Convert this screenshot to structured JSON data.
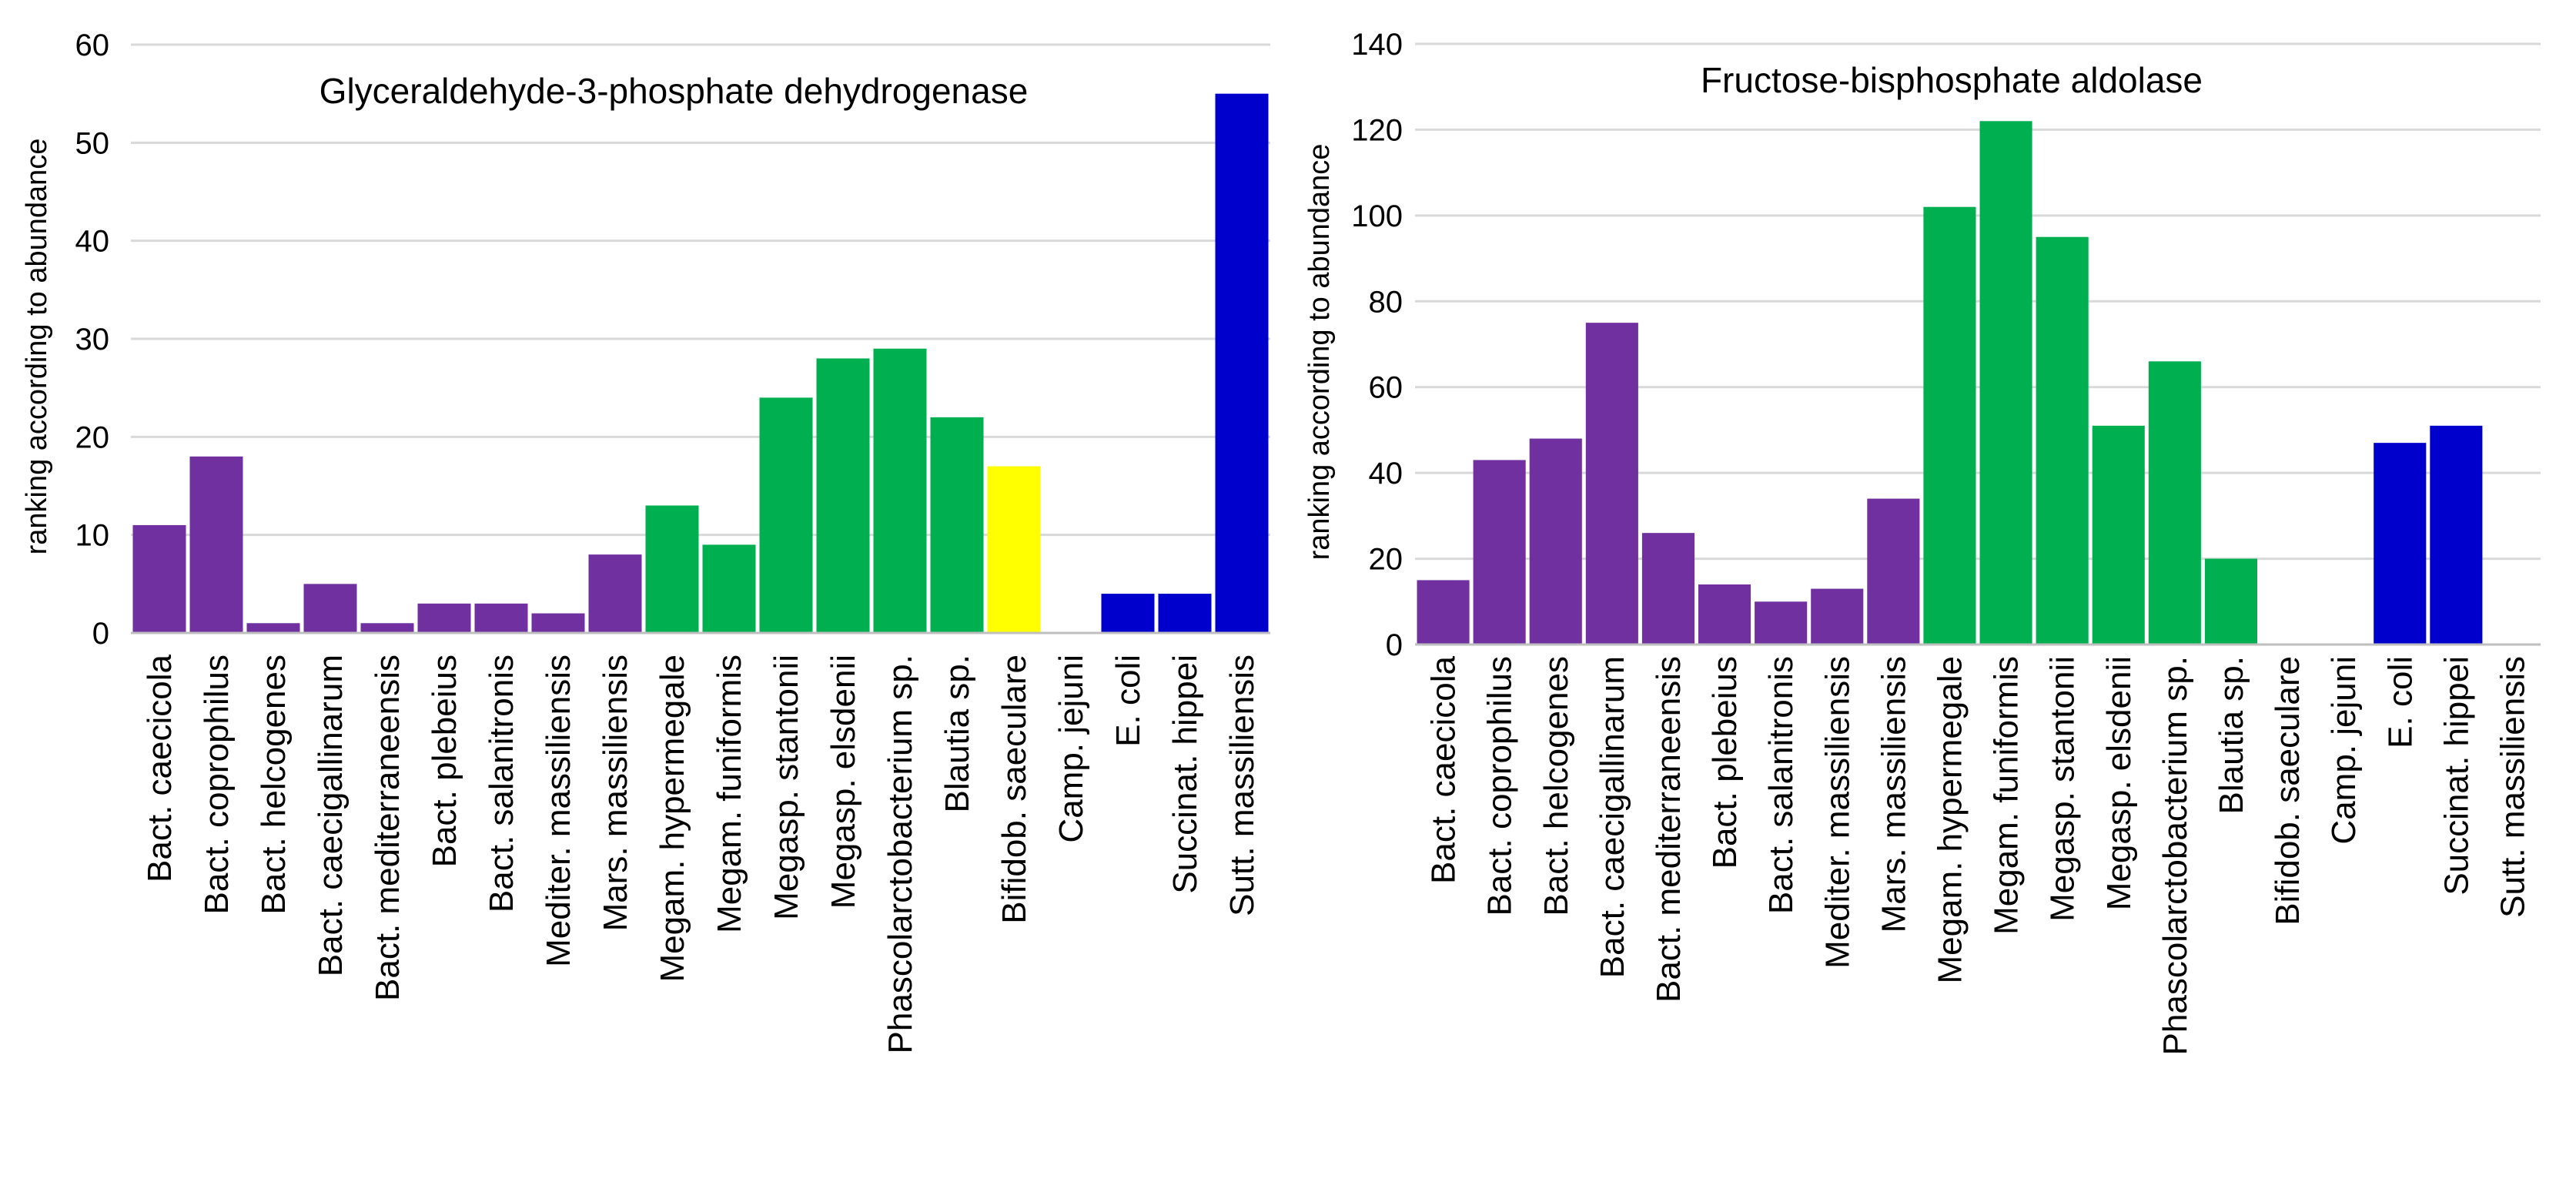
{
  "chart_data": [
    {
      "type": "bar",
      "title": "Glyceraldehyde-3-phosphate dehydrogenase",
      "xlabel": "",
      "ylabel": "ranking according to abundance",
      "ylim": [
        0,
        60
      ],
      "yticks": [
        0,
        10,
        20,
        30,
        40,
        50,
        60
      ],
      "grid": true,
      "categories": [
        "Bact. caecicola",
        "Bact. coprophilus",
        "Bact. helcogenes",
        "Bact. caecigallinarum",
        "Bact. mediterraneensis",
        "Bact. plebeius",
        "Bact. salanitronis",
        "Mediter. massiliensis",
        "Mars. massiliensis",
        "Megam. hypermegale",
        "Megam. funiformis",
        "Megasp. stantonii",
        "Megasp. elsdenii",
        "Phascolarctobacterium sp.",
        "Blautia sp.",
        "Bifidob. saeculare",
        "Camp. jejuni",
        "E. coli",
        "Succinat. hippei",
        "Sutt. massiliensis"
      ],
      "values": [
        11,
        18,
        1,
        5,
        1,
        3,
        3,
        2,
        8,
        13,
        9,
        24,
        28,
        29,
        22,
        17,
        0,
        4,
        4,
        55
      ],
      "colors": [
        "#7030a0",
        "#7030a0",
        "#7030a0",
        "#7030a0",
        "#7030a0",
        "#7030a0",
        "#7030a0",
        "#7030a0",
        "#7030a0",
        "#00b050",
        "#00b050",
        "#00b050",
        "#00b050",
        "#00b050",
        "#00b050",
        "#ffff00",
        "#ffff00",
        "#0000cc",
        "#0000cc",
        "#0000cc"
      ]
    },
    {
      "type": "bar",
      "title": "Fructose-bisphosphate aldolase",
      "xlabel": "",
      "ylabel": "ranking according to abundance",
      "ylim": [
        0,
        140
      ],
      "yticks": [
        0,
        20,
        40,
        60,
        80,
        100,
        120,
        140
      ],
      "grid": true,
      "categories": [
        "Bact. caecicola",
        "Bact. coprophilus",
        "Bact. helcogenes",
        "Bact. caecigallinarum",
        "Bact. mediterraneensis",
        "Bact. plebeius",
        "Bact. salanitronis",
        "Mediter. massiliensis",
        "Mars. massiliensis",
        "Megam. hypermegale",
        "Megam. funiformis",
        "Megasp. stantonii",
        "Megasp. elsdenii",
        "Phascolarctobacterium sp.",
        "Blautia sp.",
        "Bifidob. saeculare",
        "Camp. jejuni",
        "E. coli",
        "Succinat. hippei",
        "Sutt. massiliensis"
      ],
      "values": [
        15,
        43,
        48,
        75,
        26,
        14,
        10,
        13,
        34,
        102,
        122,
        95,
        51,
        66,
        20,
        0,
        0,
        47,
        51,
        0
      ],
      "colors": [
        "#7030a0",
        "#7030a0",
        "#7030a0",
        "#7030a0",
        "#7030a0",
        "#7030a0",
        "#7030a0",
        "#7030a0",
        "#7030a0",
        "#00b050",
        "#00b050",
        "#00b050",
        "#00b050",
        "#00b050",
        "#00b050",
        "#ffff00",
        "#ffff00",
        "#0000cc",
        "#0000cc",
        "#0000cc"
      ]
    }
  ]
}
